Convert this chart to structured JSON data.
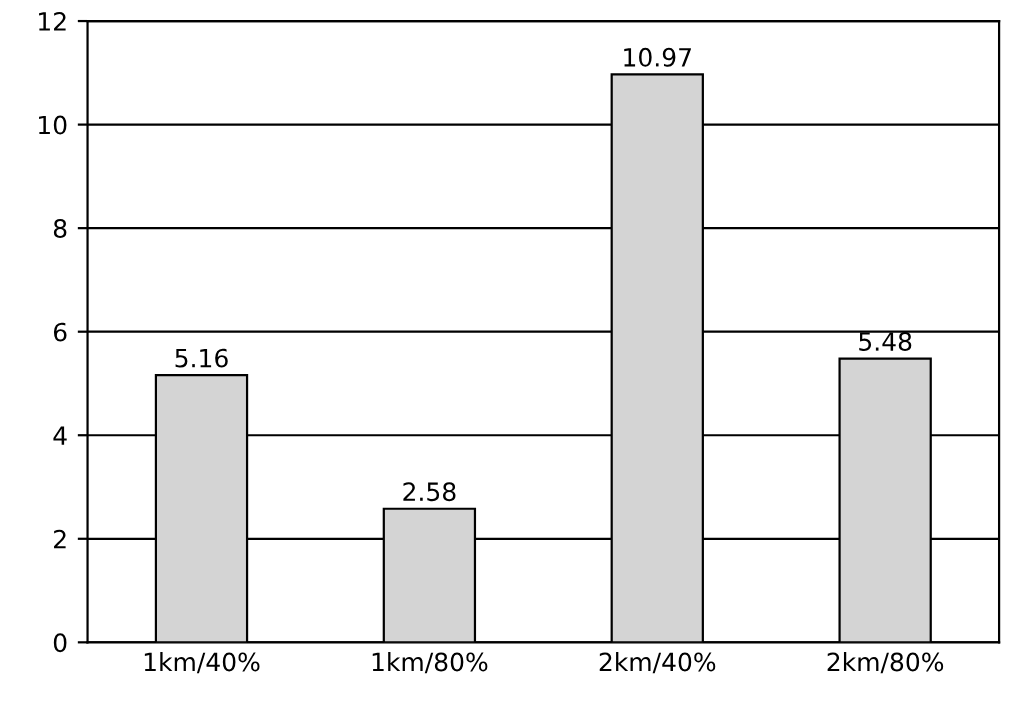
{
  "chart_data": {
    "type": "bar",
    "categories": [
      "1km/40%",
      "1km/80%",
      "2km/40%",
      "2km/80%"
    ],
    "values": [
      5.16,
      2.58,
      10.97,
      5.48
    ],
    "color": "#d4d4d4",
    "ylim": [
      0,
      12
    ],
    "yticks": [
      0,
      2,
      4,
      6,
      8,
      10,
      12
    ],
    "grid": "y",
    "data_labels": true
  }
}
